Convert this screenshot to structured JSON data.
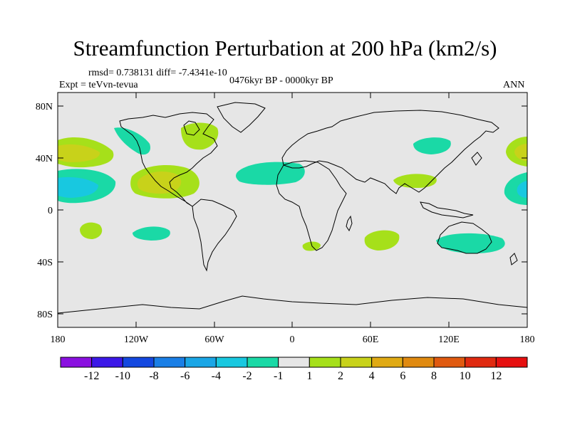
{
  "title": "Streamfunction Perturbation at 200 hPa (km2/s)",
  "stats_line": "rmsd= 0.738131 diff= -7.4341e-10",
  "experiment_label": "Expt = teVvn-tevua",
  "period_label": "0476kyr BP - 0000kyr BP",
  "season_label": "ANN",
  "map": {
    "background_color": "#e6e6e6",
    "lat_ticks": [
      "80N",
      "40N",
      "0",
      "40S",
      "80S"
    ],
    "lon_ticks": [
      "180",
      "120W",
      "60W",
      "0",
      "60E",
      "120E",
      "180"
    ]
  },
  "colorbar": {
    "levels": [
      "-12",
      "-10",
      "-8",
      "-6",
      "-4",
      "-2",
      "-1",
      "1",
      "2",
      "4",
      "6",
      "8",
      "10",
      "12"
    ],
    "colors": [
      "#8a10e0",
      "#3c18e8",
      "#1448e0",
      "#1a7fe6",
      "#1aa6e6",
      "#18c8e0",
      "#1ad9a6",
      "#e6e6e6",
      "#a6e01a",
      "#c8d21a",
      "#e0aa14",
      "#e08a10",
      "#e05a10",
      "#e02a10",
      "#e61010"
    ]
  }
}
